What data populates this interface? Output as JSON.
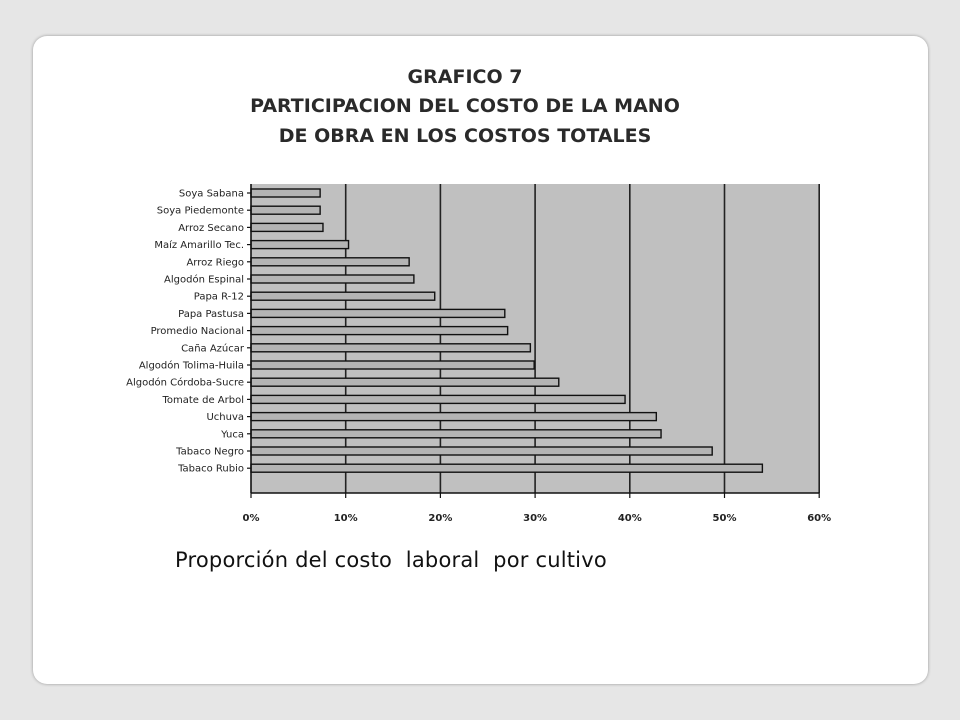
{
  "chart_data": {
    "type": "bar",
    "orientation": "horizontal",
    "title_lines": [
      "GRAFICO 7",
      "PARTICIPACION DEL COSTO DE LA MANO",
      "DE OBRA EN LOS COSTOS TOTALES"
    ],
    "categories": [
      "Soya Sabana",
      "Soya Piedemonte",
      "Arroz Secano",
      "Maíz Amarillo Tec.",
      "Arroz Riego",
      "Algodón Espinal",
      "Papa R-12",
      "Papa Pastusa",
      "Promedio Nacional",
      "Caña Azúcar",
      "Algodón Tolima-Huila",
      "Algodón Córdoba-Sucre",
      "Tomate de Arbol",
      "Uchuva",
      "Yuca",
      "Tabaco Negro",
      "Tabaco Rubio"
    ],
    "values": [
      7.3,
      7.3,
      7.6,
      10.3,
      16.7,
      17.2,
      19.4,
      26.8,
      27.1,
      29.5,
      29.9,
      32.5,
      39.5,
      42.8,
      43.3,
      48.7,
      54.0
    ],
    "xlim": [
      0,
      60
    ],
    "xticks": [
      "0%",
      "10%",
      "20%",
      "30%",
      "40%",
      "50%",
      "60%"
    ],
    "grid": true,
    "colors": {
      "plot_bg": "#c0c0c0",
      "bar_fill": "#b4b4b4",
      "bar_edge": "#111111",
      "grid": "#222222"
    }
  },
  "caption": "Proporción del costo  laboral  por cultivo"
}
